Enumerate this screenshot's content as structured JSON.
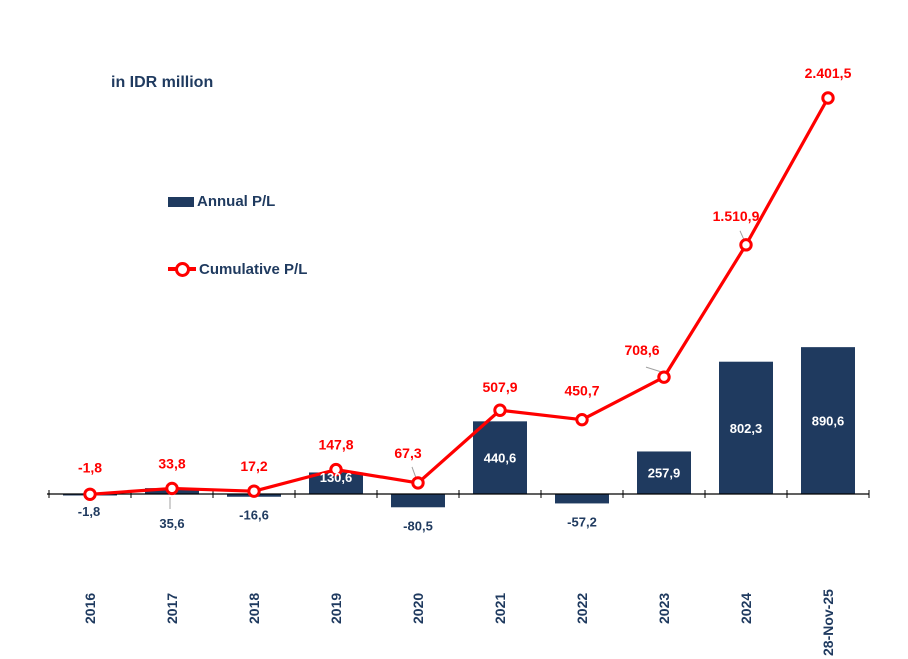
{
  "unit_label": "in IDR million",
  "chart_data": {
    "type": "bar+line",
    "categories": [
      "2016",
      "2017",
      "2018",
      "2019",
      "2020",
      "2021",
      "2022",
      "2023",
      "2024",
      "28-Nov-25"
    ],
    "series": [
      {
        "name": "Annual P/L",
        "type": "bar",
        "color": "#1F3A5F",
        "values": [
          -1.8,
          35.6,
          -16.6,
          130.6,
          -80.5,
          440.6,
          -57.2,
          257.9,
          802.3,
          890.6
        ],
        "labels": [
          "-1,8",
          "35,6",
          "-16,6",
          "130,6",
          "-80,5",
          "440,6",
          "-57,2",
          "257,9",
          "802,3",
          "890,6"
        ]
      },
      {
        "name": "Cumulative P/L",
        "type": "line",
        "color": "#FF0000",
        "values": [
          -1.8,
          33.8,
          17.2,
          147.8,
          67.3,
          507.9,
          450.7,
          708.6,
          1510.9,
          2401.5
        ],
        "labels": [
          "-1,8",
          "33,8",
          "17,2",
          "147,8",
          "67,3",
          "507,9",
          "450,7",
          "708,6",
          "1.510,9",
          "2.401,5"
        ]
      }
    ],
    "legend": [
      {
        "label": "Annual P/L",
        "kind": "bar"
      },
      {
        "label": "Cumulative P/L",
        "kind": "line"
      }
    ],
    "ylim": [
      -250,
      2500
    ],
    "grid": false,
    "legend_position": "upper-left",
    "y_axis_visible": false
  }
}
